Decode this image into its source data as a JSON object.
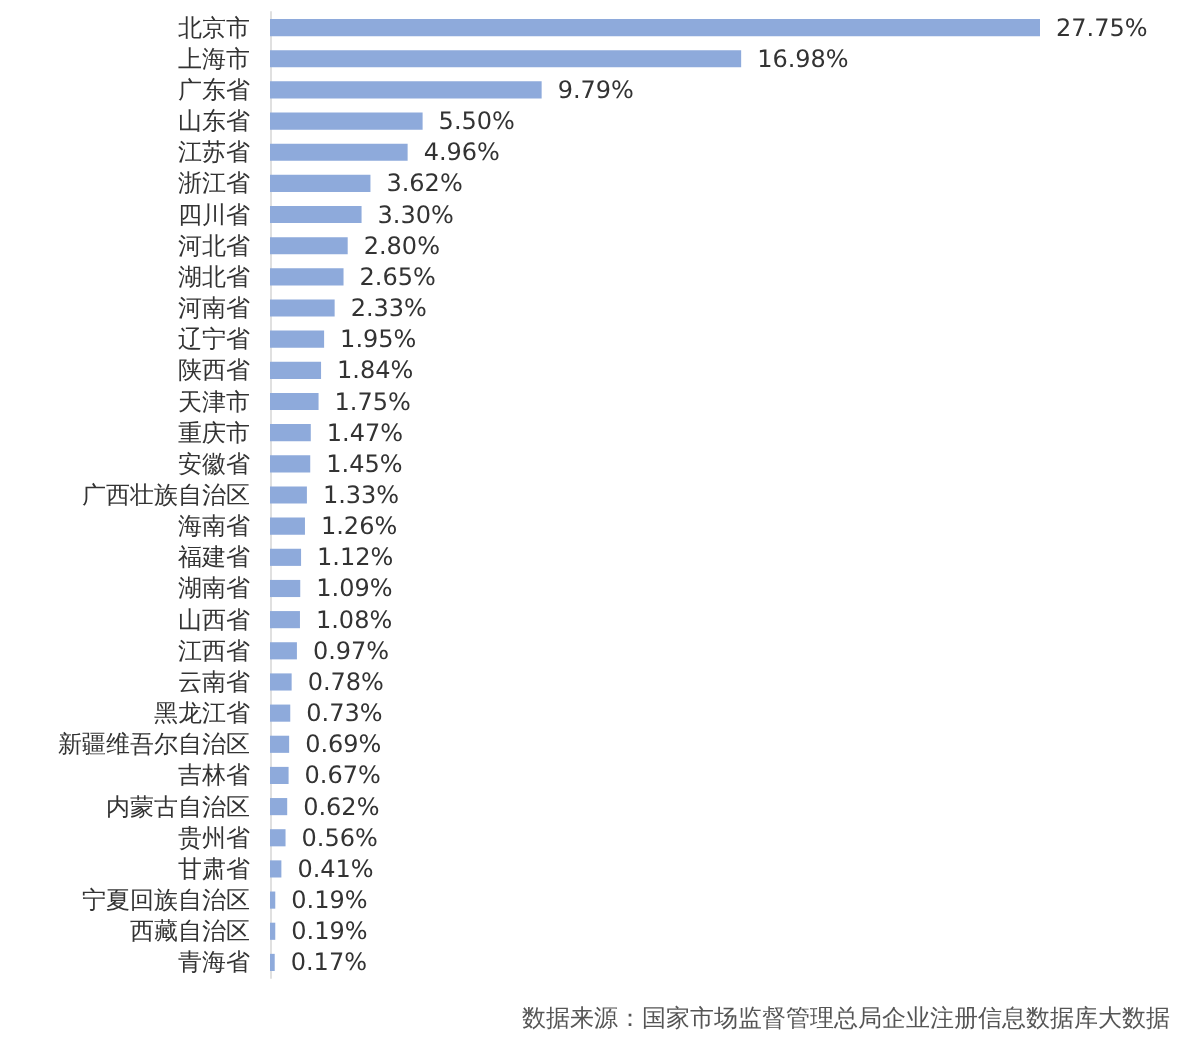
{
  "chart_data": {
    "type": "bar",
    "orientation": "horizontal",
    "color": "#8eaadb",
    "categories": [
      "北京市",
      "上海市",
      "广东省",
      "山东省",
      "江苏省",
      "浙江省",
      "四川省",
      "河北省",
      "湖北省",
      "河南省",
      "辽宁省",
      "陕西省",
      "天津市",
      "重庆市",
      "安徽省",
      "广西壮族自治区",
      "海南省",
      "福建省",
      "湖南省",
      "山西省",
      "江西省",
      "云南省",
      "黑龙江省",
      "新疆维吾尔自治区",
      "吉林省",
      "内蒙古自治区",
      "贵州省",
      "甘肃省",
      "宁夏回族自治区",
      "西藏自治区",
      "青海省"
    ],
    "values": [
      27.75,
      16.98,
      9.79,
      5.5,
      4.96,
      3.62,
      3.3,
      2.8,
      2.65,
      2.33,
      1.95,
      1.84,
      1.75,
      1.47,
      1.45,
      1.33,
      1.26,
      1.12,
      1.09,
      1.08,
      0.97,
      0.78,
      0.73,
      0.69,
      0.67,
      0.62,
      0.56,
      0.41,
      0.19,
      0.19,
      0.17
    ],
    "value_labels": [
      "27.75%",
      "16.98%",
      "9.79%",
      "5.50%",
      "4.96%",
      "3.62%",
      "3.30%",
      "2.80%",
      "2.65%",
      "2.33%",
      "1.95%",
      "1.84%",
      "1.75%",
      "1.47%",
      "1.45%",
      "1.33%",
      "1.26%",
      "1.12%",
      "1.09%",
      "1.08%",
      "0.97%",
      "0.78%",
      "0.73%",
      "0.69%",
      "0.67%",
      "0.62%",
      "0.56%",
      "0.41%",
      "0.19%",
      "0.19%",
      "0.17%"
    ],
    "annotations": [
      "数据来源：国家市场监督管理总局企业注册信息数据库大数据"
    ]
  }
}
